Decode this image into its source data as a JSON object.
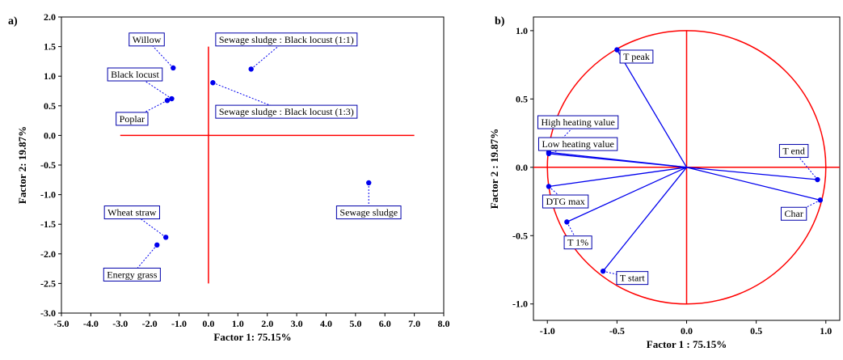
{
  "chart_data": [
    {
      "type": "scatter",
      "panel_label": "a)",
      "xlabel": "Factor 1: 75.15%",
      "ylabel": "Factor 2: 19.87%",
      "xlim": [
        -5.0,
        8.0
      ],
      "ylim": [
        -3.0,
        2.0
      ],
      "xticks": [
        "-5.0",
        "-4.0",
        "-3.0",
        "-2.0",
        "-1.0",
        "0.0",
        "1.0",
        "2.0",
        "3.0",
        "4.0",
        "5.0",
        "6.0",
        "7.0",
        "8.0"
      ],
      "yticks": [
        "2.0",
        "1.5",
        "1.0",
        "0.5",
        "0.0",
        "-0.5",
        "-1.0",
        "-1.5",
        "-2.0",
        "-2.5",
        "-3.0"
      ],
      "reference_lines": {
        "horizontal": {
          "y": 0.0,
          "x_from": -3.0,
          "x_to": 7.0
        },
        "vertical": {
          "x": 0.0,
          "y_from": -2.5,
          "y_to": 1.5
        }
      },
      "points": [
        {
          "label": "Willow",
          "x": -1.2,
          "y": 1.14,
          "label_at": [
            -2.1,
            1.62
          ]
        },
        {
          "label": "Black locust",
          "x": -1.25,
          "y": 0.62,
          "label_at": [
            -2.5,
            1.03
          ]
        },
        {
          "label": "Poplar",
          "x": -1.4,
          "y": 0.59,
          "label_at": [
            -2.6,
            0.28
          ]
        },
        {
          "label": "Sewage sludge : Black locust (1:1)",
          "x": 1.45,
          "y": 1.12,
          "label_at": [
            2.65,
            1.62
          ]
        },
        {
          "label": "Sewage sludge : Black locust (1:3)",
          "x": 0.15,
          "y": 0.89,
          "label_at": [
            2.65,
            0.4
          ]
        },
        {
          "label": "Sewage sludge",
          "x": 5.45,
          "y": -0.8,
          "label_at": [
            5.45,
            -1.3
          ]
        },
        {
          "label": "Wheat straw",
          "x": -1.45,
          "y": -1.72,
          "label_at": [
            -2.6,
            -1.3
          ]
        },
        {
          "label": "Energy grass",
          "x": -1.75,
          "y": -1.85,
          "label_at": [
            -2.6,
            -2.35
          ]
        }
      ],
      "color": "#0000ee",
      "line_color": "#ff0000"
    },
    {
      "type": "scatter",
      "panel_label": "b)",
      "xlabel": "Factor 1 : 75.15%",
      "ylabel": "Factor 2 : 19.87%",
      "xlim": [
        -1.1,
        1.1
      ],
      "ylim": [
        -1.12,
        1.1
      ],
      "xticks": [
        "-1.0",
        "-0.5",
        "0.0",
        "0.5",
        "1.0"
      ],
      "yticks": [
        "1.0",
        "0.5",
        "0.0",
        "-0.5",
        "-1.0"
      ],
      "unit_circle": true,
      "vectors": [
        {
          "label": "T peak",
          "x": -0.5,
          "y": 0.86,
          "label_at": [
            -0.36,
            0.81
          ]
        },
        {
          "label": "High heating value",
          "x": -0.99,
          "y": 0.11,
          "label_at": [
            -0.78,
            0.33
          ]
        },
        {
          "label": "Low heating value",
          "x": -0.99,
          "y": 0.1,
          "label_at": [
            -0.78,
            0.17
          ]
        },
        {
          "label": "DTG max",
          "x": -0.99,
          "y": -0.14,
          "label_at": [
            -0.87,
            -0.25
          ]
        },
        {
          "label": "T 1%",
          "x": -0.86,
          "y": -0.4,
          "label_at": [
            -0.78,
            -0.55
          ]
        },
        {
          "label": "T start",
          "x": -0.6,
          "y": -0.76,
          "label_at": [
            -0.39,
            -0.81
          ]
        },
        {
          "label": "T end",
          "x": 0.94,
          "y": -0.09,
          "label_at": [
            0.77,
            0.12
          ]
        },
        {
          "label": "Char",
          "x": 0.96,
          "y": -0.24,
          "label_at": [
            0.77,
            -0.34
          ]
        }
      ],
      "color": "#0000ee",
      "line_color": "#ff0000"
    }
  ]
}
